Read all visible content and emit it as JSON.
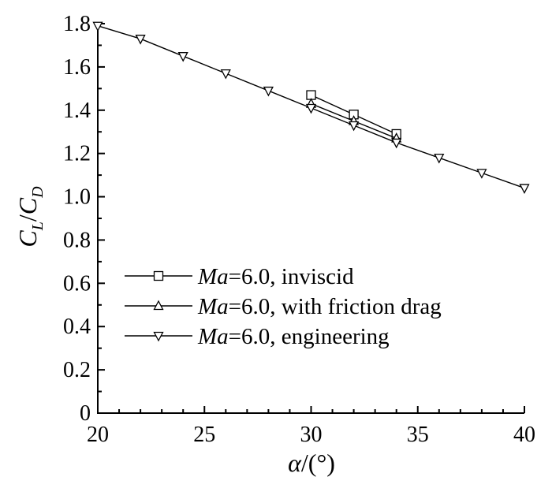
{
  "chart_data": {
    "type": "line",
    "xlabel": {
      "main": "α",
      "rest": "/(°)"
    },
    "ylabel": {
      "c1": "C",
      "s1": "L",
      "slash": "/",
      "c2": "C",
      "s2": "D"
    },
    "xlim": [
      20,
      40
    ],
    "ylim": [
      0,
      1.8
    ],
    "x_ticks": [
      20,
      25,
      30,
      35,
      40
    ],
    "x_tick_labels": [
      "20",
      "25",
      "30",
      "35",
      "40"
    ],
    "y_ticks": [
      0,
      0.2,
      0.4,
      0.6,
      0.8,
      1.0,
      1.2,
      1.4,
      1.6,
      1.8
    ],
    "y_tick_labels": [
      "0",
      "0.2",
      "0.4",
      "0.6",
      "0.8",
      "1.0",
      "1.2",
      "1.4",
      "1.6",
      "1.8"
    ],
    "grid": false,
    "legend_position": "center-left",
    "series": [
      {
        "name": "Ma=6.0, inviscid",
        "name_italic": "Ma",
        "name_rest": "=6.0, inviscid",
        "marker": "square",
        "x": [
          30,
          32,
          34
        ],
        "y": [
          1.47,
          1.38,
          1.29
        ]
      },
      {
        "name": "Ma=6.0, with friction drag",
        "name_italic": "Ma",
        "name_rest": "=6.0, with friction drag",
        "marker": "triangle-up",
        "x": [
          30,
          32,
          34
        ],
        "y": [
          1.43,
          1.35,
          1.27
        ]
      },
      {
        "name": "Ma=6.0, engineering",
        "name_italic": "Ma",
        "name_rest": "=6.0, engineering",
        "marker": "triangle-down",
        "x": [
          20,
          22,
          24,
          26,
          28,
          30,
          32,
          34,
          36,
          38,
          40
        ],
        "y": [
          1.79,
          1.73,
          1.65,
          1.57,
          1.49,
          1.41,
          1.33,
          1.25,
          1.18,
          1.11,
          1.04
        ]
      }
    ]
  }
}
